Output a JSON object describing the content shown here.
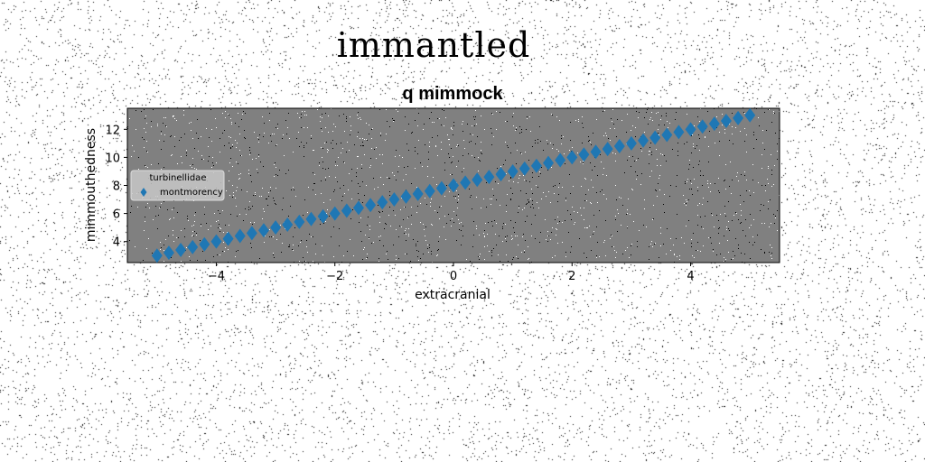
{
  "figure": {
    "suptitle": "immantled"
  },
  "chart_data": {
    "type": "scatter",
    "title": "q mimmock",
    "xlabel": "extracranial",
    "ylabel": "mimmouthedness",
    "xlim": [
      -5.5,
      5.5
    ],
    "ylim": [
      2.5,
      13.5
    ],
    "xticks": [
      -4,
      -2,
      0,
      2,
      4
    ],
    "xtick_labels": [
      "−4",
      "−2",
      "0",
      "2",
      "4"
    ],
    "yticks": [
      4,
      6,
      8,
      10,
      12
    ],
    "ytick_labels": [
      "4",
      "6",
      "8",
      "10",
      "12"
    ],
    "grid": false,
    "background": "#808080",
    "legend": {
      "title": "turbinellidae",
      "placement": "center-left",
      "entries": [
        "montmorency"
      ]
    },
    "series": [
      {
        "name": "montmorency",
        "marker": "diamond",
        "color": "#1f77b4",
        "x": [
          -5.0,
          -4.8,
          -4.6,
          -4.4,
          -4.2,
          -4.0,
          -3.8,
          -3.6,
          -3.4,
          -3.2,
          -3.0,
          -2.8,
          -2.6,
          -2.4,
          -2.2,
          -2.0,
          -1.8,
          -1.6,
          -1.4,
          -1.2,
          -1.0,
          -0.8,
          -0.6,
          -0.4,
          -0.2,
          0.0,
          0.2,
          0.4,
          0.6,
          0.8,
          1.0,
          1.2,
          1.4,
          1.6,
          1.8,
          2.0,
          2.2,
          2.4,
          2.6,
          2.8,
          3.0,
          3.2,
          3.4,
          3.6,
          3.8,
          4.0,
          4.2,
          4.4,
          4.6,
          4.8,
          5.0
        ],
        "y": [
          3.0,
          3.2,
          3.4,
          3.6,
          3.8,
          4.0,
          4.2,
          4.4,
          4.6,
          4.8,
          5.0,
          5.2,
          5.4,
          5.6,
          5.8,
          6.0,
          6.2,
          6.4,
          6.6,
          6.8,
          7.0,
          7.2,
          7.4,
          7.6,
          7.8,
          8.0,
          8.2,
          8.4,
          8.6,
          8.8,
          9.0,
          9.2,
          9.4,
          9.6,
          9.8,
          10.0,
          10.2,
          10.4,
          10.6,
          10.8,
          11.0,
          11.2,
          11.4,
          11.6,
          11.8,
          12.0,
          12.2,
          12.4,
          12.6,
          12.8,
          13.0
        ]
      }
    ]
  }
}
